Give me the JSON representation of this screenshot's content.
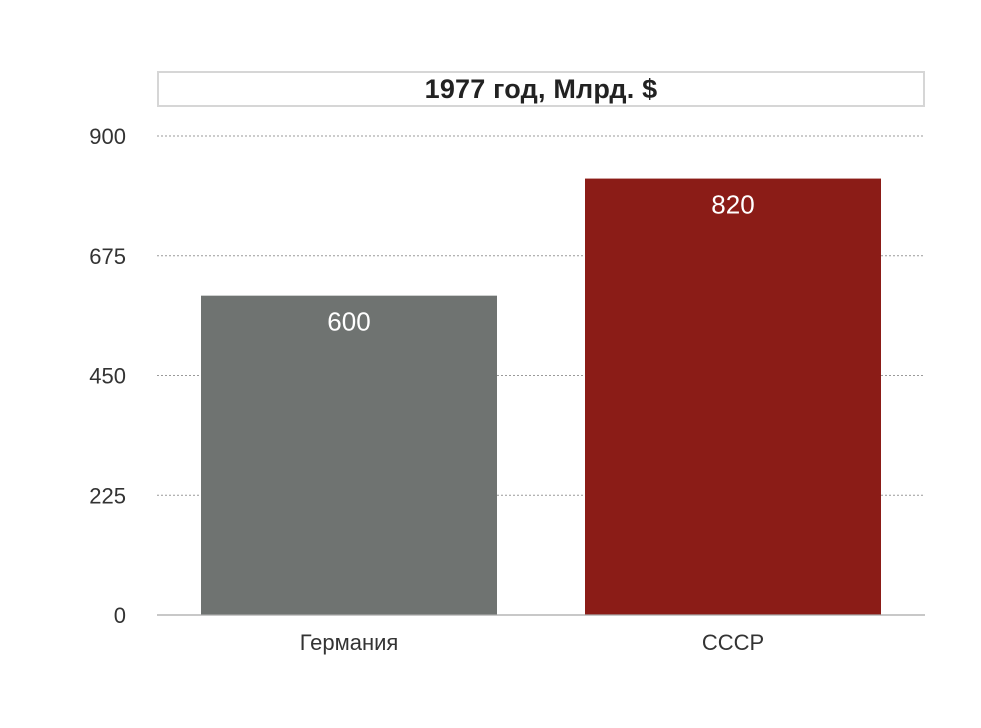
{
  "chart_data": {
    "type": "bar",
    "title": "1977 год, Млрд. $",
    "xlabel": "",
    "ylabel": "",
    "categories": [
      "Германия",
      "СССР"
    ],
    "values": [
      600,
      820
    ],
    "data_labels": [
      "600",
      "820"
    ],
    "ylim": [
      0,
      900
    ],
    "yticks": [
      0,
      225,
      450,
      675,
      900
    ],
    "ytick_labels": [
      "0",
      "225",
      "450",
      "675",
      "900"
    ],
    "grid": true,
    "grid_style": "dotted",
    "legend": "none",
    "colors": [
      "#6f7371",
      "#8b1c17"
    ],
    "data_label_color": "#ffffff",
    "axis_text_color": "#333333",
    "grid_color": "#9a9a9a"
  }
}
